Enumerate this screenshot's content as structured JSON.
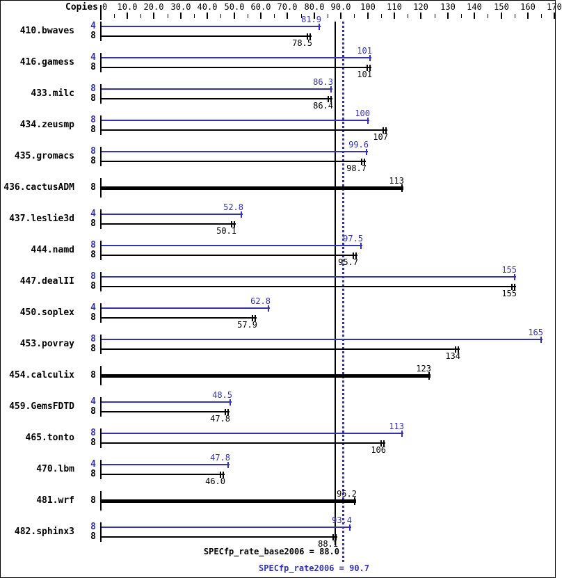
{
  "summary": {
    "base_text": "SPECfp_rate_base2006 = 88.0",
    "peak_text": "SPECfp_rate2006 = 90.7"
  },
  "chart_data": {
    "type": "bar",
    "orientation": "horizontal",
    "copies_column_header": "Copies",
    "x_axis": {
      "range": [
        0,
        170
      ],
      "major_tick_interval": 10,
      "minor_tick_interval": 5,
      "tick_labels": [
        "0",
        "10.0",
        "20.0",
        "30.0",
        "40.0",
        "50.0",
        "60.0",
        "70.0",
        "80.0",
        "90.0",
        "100",
        "110",
        "120",
        "130",
        "140",
        "150",
        "160",
        "170"
      ]
    },
    "series_colors": {
      "peak": "#3333b0",
      "base": "#000000"
    },
    "reference_lines": [
      {
        "name": "base",
        "value": 88.0,
        "style": "solid",
        "color": "#000000"
      },
      {
        "name": "peak",
        "value": 90.7,
        "style": "dotted",
        "color": "#3333b0"
      }
    ],
    "benchmarks": [
      {
        "name": "410.bwaves",
        "peak": {
          "copies": "4",
          "value": 81.9,
          "label": "81.9"
        },
        "base": {
          "copies": "8",
          "value": 78.5,
          "label": "78.5"
        }
      },
      {
        "name": "416.gamess",
        "peak": {
          "copies": "4",
          "value": 101,
          "label": "101"
        },
        "base": {
          "copies": "8",
          "value": 101,
          "label": "101"
        }
      },
      {
        "name": "433.milc",
        "peak": {
          "copies": "8",
          "value": 86.3,
          "label": "86.3"
        },
        "base": {
          "copies": "8",
          "value": 86.4,
          "label": "86.4"
        }
      },
      {
        "name": "434.zeusmp",
        "peak": {
          "copies": "8",
          "value": 100,
          "label": "100"
        },
        "base": {
          "copies": "8",
          "value": 107,
          "label": "107"
        }
      },
      {
        "name": "435.gromacs",
        "peak": {
          "copies": "8",
          "value": 99.6,
          "label": "99.6"
        },
        "base": {
          "copies": "8",
          "value": 98.7,
          "label": "98.7"
        }
      },
      {
        "name": "436.cactusADM",
        "single": true,
        "base": {
          "copies": "8",
          "value": 113,
          "label": "113"
        }
      },
      {
        "name": "437.leslie3d",
        "peak": {
          "copies": "4",
          "value": 52.8,
          "label": "52.8"
        },
        "base": {
          "copies": "8",
          "value": 50.1,
          "label": "50.1"
        }
      },
      {
        "name": "444.namd",
        "peak": {
          "copies": "8",
          "value": 97.5,
          "label": "97.5"
        },
        "base": {
          "copies": "8",
          "value": 95.7,
          "label": "95.7"
        }
      },
      {
        "name": "447.dealII",
        "peak": {
          "copies": "8",
          "value": 155,
          "label": "155"
        },
        "base": {
          "copies": "8",
          "value": 155,
          "label": "155"
        }
      },
      {
        "name": "450.soplex",
        "peak": {
          "copies": "4",
          "value": 62.8,
          "label": "62.8"
        },
        "base": {
          "copies": "8",
          "value": 57.9,
          "label": "57.9"
        }
      },
      {
        "name": "453.povray",
        "peak": {
          "copies": "8",
          "value": 165,
          "label": "165"
        },
        "base": {
          "copies": "8",
          "value": 134,
          "label": "134"
        }
      },
      {
        "name": "454.calculix",
        "single": true,
        "base": {
          "copies": "8",
          "value": 123,
          "label": "123"
        }
      },
      {
        "name": "459.GemsFDTD",
        "peak": {
          "copies": "4",
          "value": 48.5,
          "label": "48.5"
        },
        "base": {
          "copies": "8",
          "value": 47.8,
          "label": "47.8"
        }
      },
      {
        "name": "465.tonto",
        "peak": {
          "copies": "8",
          "value": 113,
          "label": "113"
        },
        "base": {
          "copies": "8",
          "value": 106,
          "label": "106"
        }
      },
      {
        "name": "470.lbm",
        "peak": {
          "copies": "4",
          "value": 47.8,
          "label": "47.8"
        },
        "base": {
          "copies": "8",
          "value": 46.0,
          "label": "46.0"
        }
      },
      {
        "name": "481.wrf",
        "single": true,
        "base": {
          "copies": "8",
          "value": 95.2,
          "label": "95.2"
        }
      },
      {
        "name": "482.sphinx3",
        "peak": {
          "copies": "8",
          "value": 93.4,
          "label": "93.4"
        },
        "base": {
          "copies": "8",
          "value": 88.1,
          "label": "88.1"
        }
      }
    ]
  }
}
